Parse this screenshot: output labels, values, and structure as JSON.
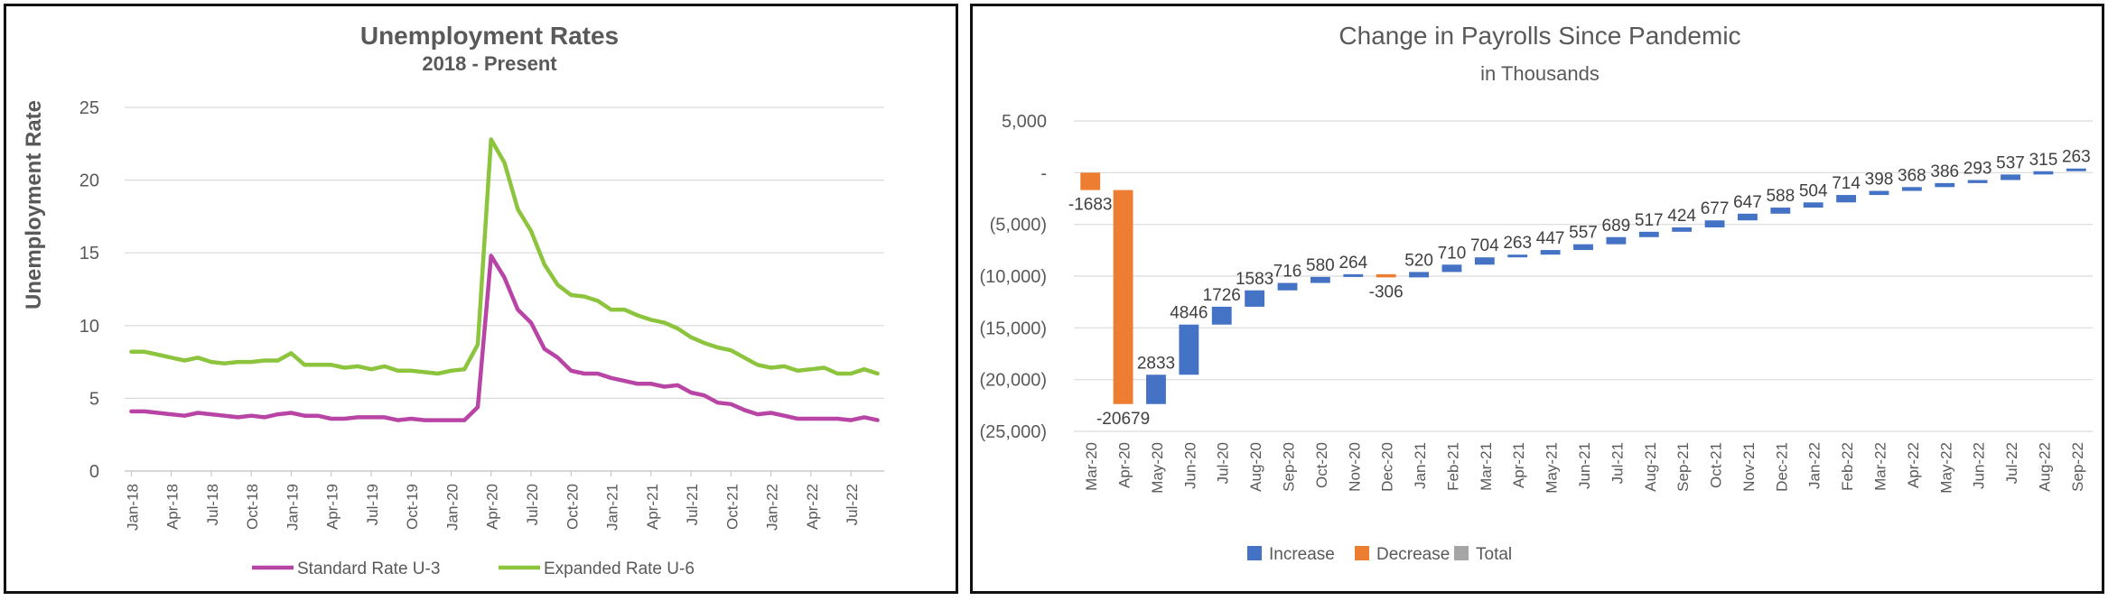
{
  "chart_data": [
    {
      "type": "line",
      "title": "Unemployment Rates",
      "subtitle": "2018 - Present",
      "xlabel": "",
      "ylabel": "Unemployment Rate",
      "ylim": [
        0,
        25
      ],
      "yticks": [
        "0",
        "5",
        "10",
        "15",
        "20",
        "25"
      ],
      "grid": true,
      "legend": "bottom",
      "x_tick_labels": [
        "Jan-18",
        "Apr-18",
        "Jul-18",
        "Oct-18",
        "Jan-19",
        "Apr-19",
        "Jul-19",
        "Oct-19",
        "Jan-20",
        "Apr-20",
        "Jul-20",
        "Oct-20",
        "Jan-21",
        "Apr-21",
        "Jul-21",
        "Oct-21",
        "Jan-22",
        "Apr-22",
        "Jul-22"
      ],
      "x": [
        "Jan-18",
        "Feb-18",
        "Mar-18",
        "Apr-18",
        "May-18",
        "Jun-18",
        "Jul-18",
        "Aug-18",
        "Sep-18",
        "Oct-18",
        "Nov-18",
        "Dec-18",
        "Jan-19",
        "Feb-19",
        "Mar-19",
        "Apr-19",
        "May-19",
        "Jun-19",
        "Jul-19",
        "Aug-19",
        "Sep-19",
        "Oct-19",
        "Nov-19",
        "Dec-19",
        "Jan-20",
        "Feb-20",
        "Mar-20",
        "Apr-20",
        "May-20",
        "Jun-20",
        "Jul-20",
        "Aug-20",
        "Sep-20",
        "Oct-20",
        "Nov-20",
        "Dec-20",
        "Jan-21",
        "Feb-21",
        "Mar-21",
        "Apr-21",
        "May-21",
        "Jun-21",
        "Jul-21",
        "Aug-21",
        "Sep-21",
        "Oct-21",
        "Nov-21",
        "Dec-21",
        "Jan-22",
        "Feb-22",
        "Mar-22",
        "Apr-22",
        "May-22",
        "Jun-22",
        "Jul-22",
        "Aug-22",
        "Sep-22"
      ],
      "series": [
        {
          "name": "Standard Rate U-3",
          "color": "#b845a6",
          "values": [
            4.1,
            4.1,
            4.0,
            3.9,
            3.8,
            4.0,
            3.9,
            3.8,
            3.7,
            3.8,
            3.7,
            3.9,
            4.0,
            3.8,
            3.8,
            3.6,
            3.6,
            3.7,
            3.7,
            3.7,
            3.5,
            3.6,
            3.5,
            3.5,
            3.5,
            3.5,
            4.4,
            14.8,
            13.3,
            11.1,
            10.2,
            8.4,
            7.8,
            6.9,
            6.7,
            6.7,
            6.4,
            6.2,
            6.0,
            6.0,
            5.8,
            5.9,
            5.4,
            5.2,
            4.7,
            4.6,
            4.2,
            3.9,
            4.0,
            3.8,
            3.6,
            3.6,
            3.6,
            3.6,
            3.5,
            3.7,
            3.5
          ]
        },
        {
          "name": "Expanded Rate U-6",
          "color": "#8cc43e",
          "values": [
            8.2,
            8.2,
            8.0,
            7.8,
            7.6,
            7.8,
            7.5,
            7.4,
            7.5,
            7.5,
            7.6,
            7.6,
            8.1,
            7.3,
            7.3,
            7.3,
            7.1,
            7.2,
            7.0,
            7.2,
            6.9,
            6.9,
            6.8,
            6.7,
            6.9,
            7.0,
            8.7,
            22.8,
            21.2,
            18.0,
            16.5,
            14.2,
            12.8,
            12.1,
            12.0,
            11.7,
            11.1,
            11.1,
            10.7,
            10.4,
            10.2,
            9.8,
            9.2,
            8.8,
            8.5,
            8.3,
            7.8,
            7.3,
            7.1,
            7.2,
            6.9,
            7.0,
            7.1,
            6.7,
            6.7,
            7.0,
            6.7
          ]
        }
      ]
    },
    {
      "type": "bar",
      "subtype": "waterfall",
      "title": "Change in Payrolls Since Pandemic",
      "subtitle": "in Thousands",
      "xlabel": "",
      "ylabel": "",
      "ylim": [
        -25000,
        5000
      ],
      "yticks": [
        "5,000",
        "-",
        "(5,000)",
        "(10,000)",
        "(15,000)",
        "(20,000)",
        "(25,000)"
      ],
      "grid": true,
      "legend": "bottom",
      "legend_entries": [
        {
          "name": "Increase",
          "color": "#4472c4"
        },
        {
          "name": "Decrease",
          "color": "#ed7d31"
        },
        {
          "name": "Total",
          "color": "#a5a5a5"
        }
      ],
      "categories": [
        "Mar-20",
        "Apr-20",
        "May-20",
        "Jun-20",
        "Jul-20",
        "Aug-20",
        "Sep-20",
        "Oct-20",
        "Nov-20",
        "Dec-20",
        "Jan-21",
        "Feb-21",
        "Mar-21",
        "Apr-21",
        "May-21",
        "Jun-21",
        "Jul-21",
        "Aug-21",
        "Sep-21",
        "Oct-21",
        "Nov-21",
        "Dec-21",
        "Jan-22",
        "Feb-22",
        "Mar-22",
        "Apr-22",
        "May-22",
        "Jun-22",
        "Jul-22",
        "Aug-22",
        "Sep-22"
      ],
      "values": [
        -1683,
        -20679,
        2833,
        4846,
        1726,
        1583,
        716,
        580,
        264,
        -306,
        520,
        710,
        704,
        263,
        447,
        557,
        689,
        517,
        424,
        677,
        647,
        588,
        504,
        714,
        398,
        368,
        386,
        293,
        537,
        315,
        263
      ],
      "labels": [
        "-1683",
        "-20679",
        "2833",
        "4846",
        "1726",
        "1583",
        "716",
        "580",
        "264",
        "-306",
        "520",
        "710",
        "704",
        "263",
        "447",
        "557",
        "689",
        "517",
        "424",
        "677",
        "647",
        "588",
        "504",
        "714",
        "398",
        "368",
        "386",
        "293",
        "537",
        "315",
        "263"
      ]
    }
  ]
}
